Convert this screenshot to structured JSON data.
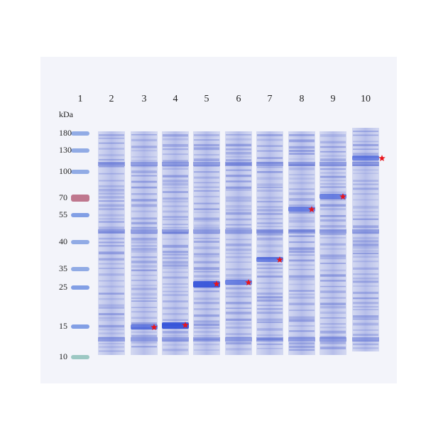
{
  "lanes": [
    "1",
    "2",
    "3",
    "4",
    "5",
    "6",
    "7",
    "8",
    "9",
    "10"
  ],
  "unit_label": "kDa",
  "markers": [
    "180",
    "130",
    "100",
    "70",
    "55",
    "40",
    "35",
    "25",
    "15",
    "10"
  ]
}
